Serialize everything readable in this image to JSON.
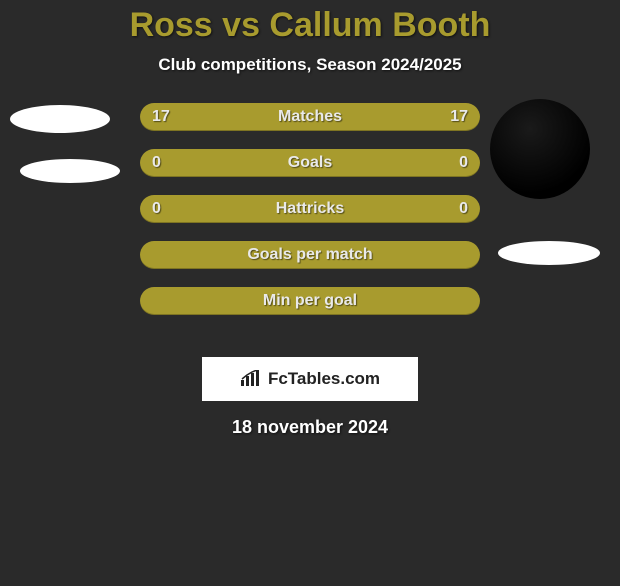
{
  "title": {
    "text": "Ross vs Callum Booth",
    "color": "#a89b2e",
    "fontsize": 34
  },
  "subtitle": {
    "text": "Club competitions, Season 2024/2025",
    "fontsize": 17
  },
  "bars": {
    "bar_fontsize": 16,
    "value_fontsize": 16,
    "items": [
      {
        "label": "Matches",
        "left": "17",
        "right": "17",
        "bg": "#a89b2e"
      },
      {
        "label": "Goals",
        "left": "0",
        "right": "0",
        "bg": "#a89b2e"
      },
      {
        "label": "Hattricks",
        "left": "0",
        "right": "0",
        "bg": "#a89b2e"
      },
      {
        "label": "Goals per match",
        "left": "",
        "right": "",
        "bg": "#a89b2e"
      },
      {
        "label": "Min per goal",
        "left": "",
        "right": "",
        "bg": "#a89b2e"
      }
    ]
  },
  "logo": {
    "text": "FcTables.com"
  },
  "date": {
    "text": "18 november 2024",
    "fontsize": 18
  },
  "background_color": "#2a2a2a"
}
